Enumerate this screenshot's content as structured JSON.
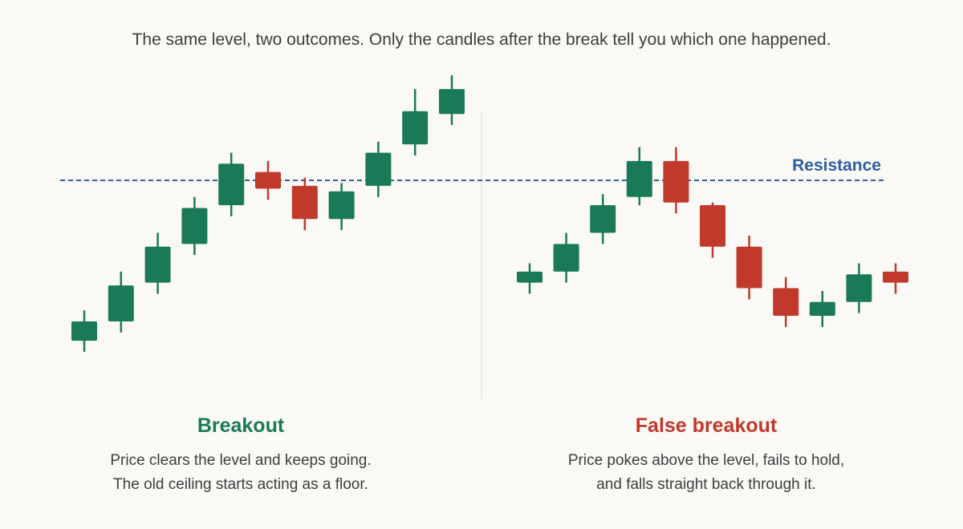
{
  "caption": "The same level, two outcomes. Only the candles after the break tell you which one happened.",
  "colors": {
    "up": "#1a7a58",
    "down": "#c0392b",
    "resistance": "#2e5e9e",
    "divider": "#e4e4e4"
  },
  "resistance_label": "Resistance",
  "panels": [
    {
      "title": "Breakout",
      "lines": [
        "Price clears the level and keeps going.",
        "The old ceiling starts acting as a floor."
      ]
    },
    {
      "title": "False breakout",
      "lines": [
        "Price pokes above the level, fails to hold,",
        "and falls straight back through it."
      ]
    }
  ],
  "chart_data": [
    {
      "type": "candlestick",
      "title": "Breakout",
      "resistance": 100,
      "candles": [
        {
          "open": 42,
          "close": 49,
          "high": 53,
          "low": 38,
          "direction": "up"
        },
        {
          "open": 49,
          "close": 62,
          "high": 67,
          "low": 45,
          "direction": "up"
        },
        {
          "open": 63,
          "close": 76,
          "high": 81,
          "low": 59,
          "direction": "up"
        },
        {
          "open": 77,
          "close": 90,
          "high": 94,
          "low": 73,
          "direction": "up"
        },
        {
          "open": 91,
          "close": 106,
          "high": 110,
          "low": 87,
          "direction": "up"
        },
        {
          "open": 103,
          "close": 97,
          "high": 107,
          "low": 93,
          "direction": "down"
        },
        {
          "open": 98,
          "close": 86,
          "high": 101,
          "low": 82,
          "direction": "down"
        },
        {
          "open": 86,
          "close": 96,
          "high": 99,
          "low": 82,
          "direction": "up"
        },
        {
          "open": 98,
          "close": 110,
          "high": 114,
          "low": 94,
          "direction": "up"
        },
        {
          "open": 113,
          "close": 125,
          "high": 133,
          "low": 109,
          "direction": "up"
        },
        {
          "open": 124,
          "close": 133,
          "high": 138,
          "low": 120,
          "direction": "up"
        }
      ]
    },
    {
      "type": "candlestick",
      "title": "False breakout",
      "resistance": 100,
      "candles": [
        {
          "open": 63,
          "close": 67,
          "high": 70,
          "low": 59,
          "direction": "up"
        },
        {
          "open": 67,
          "close": 77,
          "high": 81,
          "low": 63,
          "direction": "up"
        },
        {
          "open": 81,
          "close": 91,
          "high": 95,
          "low": 77,
          "direction": "up"
        },
        {
          "open": 94,
          "close": 107,
          "high": 112,
          "low": 91,
          "direction": "up"
        },
        {
          "open": 107,
          "close": 92,
          "high": 112,
          "low": 88,
          "direction": "down"
        },
        {
          "open": 91,
          "close": 76,
          "high": 92,
          "low": 72,
          "direction": "down"
        },
        {
          "open": 76,
          "close": 61,
          "high": 80,
          "low": 57,
          "direction": "down"
        },
        {
          "open": 61,
          "close": 51,
          "high": 65,
          "low": 47,
          "direction": "down"
        },
        {
          "open": 51,
          "close": 56,
          "high": 60,
          "low": 47,
          "direction": "up"
        },
        {
          "open": 56,
          "close": 66,
          "high": 70,
          "low": 52,
          "direction": "up"
        },
        {
          "open": 67,
          "close": 63,
          "high": 70,
          "low": 59,
          "direction": "down"
        }
      ]
    }
  ]
}
